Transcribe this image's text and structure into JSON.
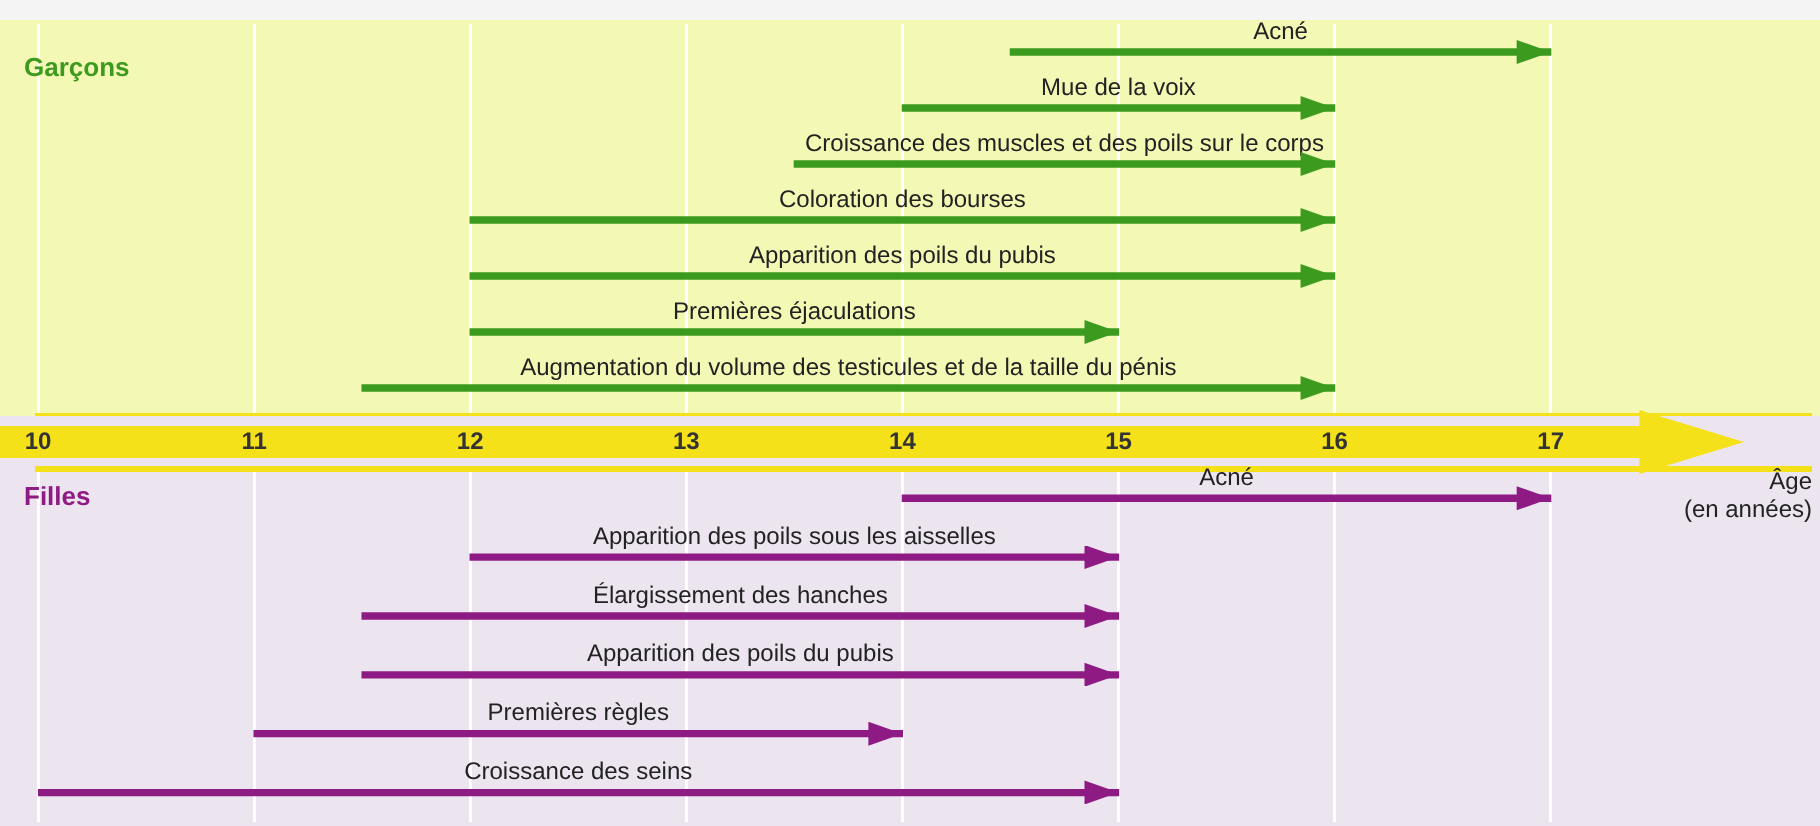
{
  "chart_data": [
    {
      "type": "bar",
      "orientation": "horizontal",
      "title": "Garçons",
      "categories": [
        "Acné",
        "Mue de la voix",
        "Croissance des muscles et des poils sur le corps",
        "Coloration des bourses",
        "Apparition des poils du pubis",
        "Premières éjaculations",
        "Augmentation du volume des testicules et de la taille du pénis"
      ],
      "base": [
        14.5,
        14,
        13.5,
        12,
        12,
        12,
        11.5
      ],
      "values": [
        2.5,
        2,
        2.5,
        4,
        4,
        3,
        4.5
      ],
      "color": "#3c9a1e",
      "xlim": [
        10,
        18.2
      ],
      "xticks": [
        10,
        11,
        12,
        13,
        14,
        15,
        16,
        17
      ],
      "grid": "x",
      "tick_labels": "y"
    },
    {
      "type": "bar",
      "orientation": "horizontal",
      "title": "Filles",
      "xlabel": "Âge (en années)",
      "categories": [
        "Acné",
        "Apparition des poils sous les aisselles",
        "Élargissement des hanches",
        "Apparition des poils du pubis",
        "Premières règles",
        "Croissance des seins"
      ],
      "base": [
        14,
        12,
        11.5,
        11.5,
        11,
        10
      ],
      "values": [
        3,
        3,
        3.5,
        3.5,
        3,
        5
      ],
      "color": "#8e1a84",
      "xlim": [
        10,
        18.2
      ],
      "xticks": [
        10,
        11,
        12,
        13,
        14,
        15,
        16,
        17
      ],
      "grid": "x"
    }
  ]
}
